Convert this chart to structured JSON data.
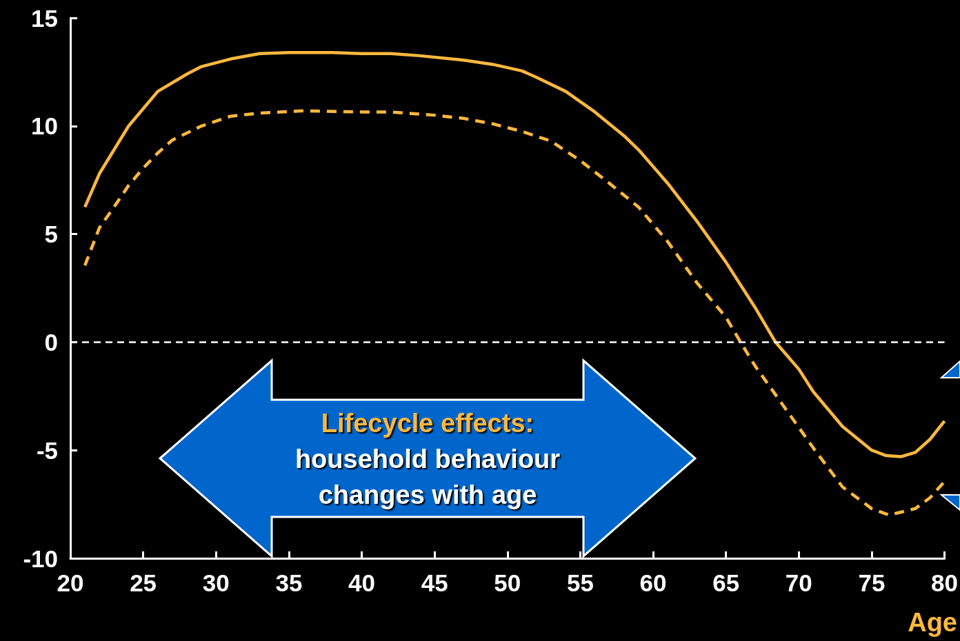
{
  "chart_data": {
    "type": "line",
    "xlabel": "Age",
    "annotations": [
      "Lifecycle effects:",
      "household behaviour changes with age"
    ],
    "xlim": [
      20,
      80
    ],
    "xticks": [
      20,
      25,
      30,
      35,
      40,
      45,
      50,
      55,
      60,
      65,
      70,
      75,
      80
    ],
    "ylim": [
      -10,
      15
    ],
    "yticks": [
      -10,
      -5,
      0,
      5,
      10,
      15
    ],
    "grid": false,
    "marker": "none",
    "ref_lines": [
      {
        "axis": "y",
        "value": 0,
        "color": "#ffffff",
        "line_style": "dashed"
      }
    ],
    "series": [
      {
        "color": "#ffb83d",
        "line_style": "solid",
        "x": [
          21,
          22,
          23,
          24,
          26,
          28,
          29,
          31,
          33,
          35,
          38,
          40,
          42,
          44,
          47,
          49,
          51,
          52,
          54,
          56,
          58,
          59,
          61,
          63,
          65,
          67,
          68.4,
          70,
          71,
          73,
          75,
          76,
          77,
          78,
          79,
          80
        ],
        "values": [
          6.25,
          7.8,
          8.9,
          10.0,
          11.6,
          12.4,
          12.75,
          13.1,
          13.35,
          13.4,
          13.4,
          13.35,
          13.35,
          13.25,
          13.05,
          12.85,
          12.55,
          12.25,
          11.6,
          10.65,
          9.55,
          8.9,
          7.35,
          5.6,
          3.7,
          1.6,
          0,
          -1.25,
          -2.3,
          -3.9,
          -5.0,
          -5.25,
          -5.3,
          -5.1,
          -4.5,
          -3.65
        ]
      },
      {
        "color": "#ffb83d",
        "line_style": "dashed",
        "x": [
          21,
          22,
          23,
          24,
          25,
          26,
          27,
          29,
          31,
          33,
          36,
          40,
          42,
          45,
          47,
          49,
          51,
          53,
          55,
          57,
          59,
          61,
          63,
          65,
          66,
          67,
          69,
          71,
          73,
          75,
          76.2,
          78,
          79,
          80
        ],
        "values": [
          3.55,
          5.3,
          6.25,
          7.25,
          8.05,
          8.75,
          9.35,
          10.0,
          10.45,
          10.6,
          10.7,
          10.65,
          10.65,
          10.5,
          10.35,
          10.1,
          9.75,
          9.3,
          8.4,
          7.35,
          6.25,
          4.65,
          2.75,
          1.15,
          0,
          -1.1,
          -3.0,
          -4.9,
          -6.7,
          -7.7,
          -8.0,
          -7.7,
          -7.2,
          -6.45
        ]
      }
    ]
  }
}
